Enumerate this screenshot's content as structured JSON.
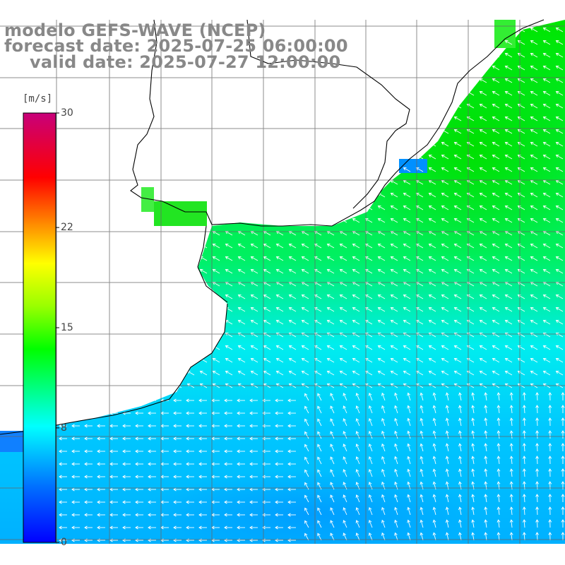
{
  "title": {
    "line1": "modelo GEFS-WAVE (NCEP)",
    "line2": "forecast date: 2025-07-25 06:00:00",
    "line3": "valid date: 2025-07-27 12:00:00"
  },
  "colorbar": {
    "unit": "[m/s]",
    "ticks": [
      "30",
      "22",
      "15",
      "8",
      "0"
    ],
    "tick_values": [
      30,
      22,
      15,
      8,
      0
    ],
    "min": 0,
    "max": 30,
    "colors": [
      "#0000ff",
      "#0088ff",
      "#00ffff",
      "#00ff00",
      "#ffff00",
      "#ff7700",
      "#ff0000",
      "#cc0077"
    ]
  },
  "map": {
    "land_color": "#ffffff",
    "grid_color": "#666666",
    "coast_color": "#000000",
    "arrow_color": "#ffffff",
    "wind_speed_zones": [
      {
        "region": "north-east offshore",
        "speed_range_ms": "11-13"
      },
      {
        "region": "central offshore band",
        "speed_range_ms": "11-12"
      },
      {
        "region": "southern waters",
        "speed_range_ms": "5-8"
      }
    ],
    "wind_direction": "from the south-east / east (arrows pointing north-west and west)"
  }
}
